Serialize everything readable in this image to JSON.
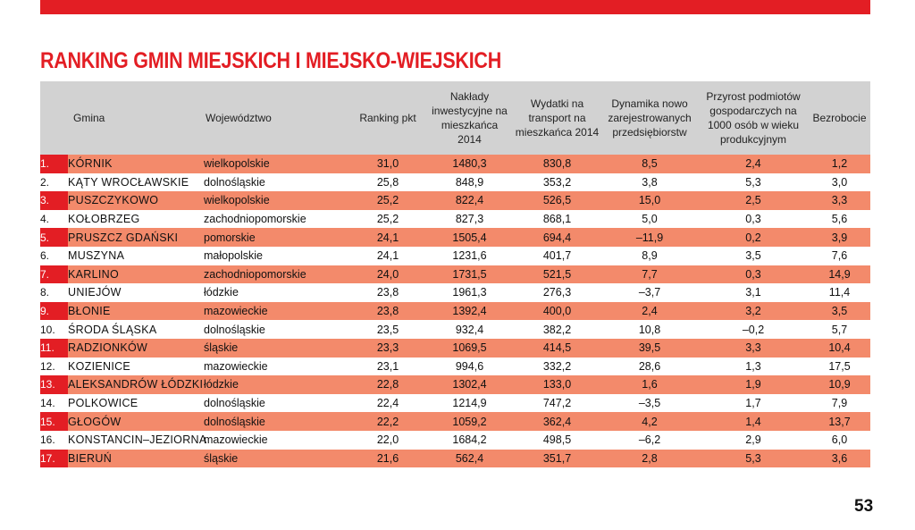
{
  "title": "RANKING GMIN MIEJSKICH I MIEJSKO-WIEJSKICH",
  "page_number": "53",
  "colors": {
    "accent_red": "#e31e24",
    "salmon_row": "#f38a6b",
    "header_gray": "#d2d2d2"
  },
  "headers": {
    "gmina": "Gmina",
    "wojewodztwo": "Województwo",
    "ranking": "Ranking pkt",
    "naklady": "Nakłady inwestycyjne na mieszkańca 2014",
    "wydatki": "Wydatki na transport na mieszkańca 2014",
    "dynamika": "Dynamika nowo zarejestrowanych przedsiębiorstw",
    "przyrost": "Przyrost podmiotów gospodarczych na 1000 osób w wieku produkcyjnym",
    "bezrobocie": "Bezrobocie"
  },
  "rows": [
    {
      "nr": "1.",
      "gmina": "KÓRNIK",
      "woj": "wielkopolskie",
      "pkt": "31,0",
      "naklady": "1480,3",
      "wydatki": "830,8",
      "dynamika": "8,5",
      "przyrost": "2,4",
      "bezrobocie": "1,2"
    },
    {
      "nr": "2.",
      "gmina": "KĄTY WROCŁAWSKIE",
      "woj": "dolnośląskie",
      "pkt": "25,8",
      "naklady": "848,9",
      "wydatki": "353,2",
      "dynamika": "3,8",
      "przyrost": "5,3",
      "bezrobocie": "3,0"
    },
    {
      "nr": "3.",
      "gmina": "PUSZCZYKOWO",
      "woj": "wielkopolskie",
      "pkt": "25,2",
      "naklady": "822,4",
      "wydatki": "526,5",
      "dynamika": "15,0",
      "przyrost": "2,5",
      "bezrobocie": "3,3"
    },
    {
      "nr": "4.",
      "gmina": "KOŁOBRZEG",
      "woj": "zachodniopomorskie",
      "pkt": "25,2",
      "naklady": "827,3",
      "wydatki": "868,1",
      "dynamika": "5,0",
      "przyrost": "0,3",
      "bezrobocie": "5,6"
    },
    {
      "nr": "5.",
      "gmina": "PRUSZCZ GDAŃSKI",
      "woj": "pomorskie",
      "pkt": "24,1",
      "naklady": "1505,4",
      "wydatki": "694,4",
      "dynamika": "–11,9",
      "przyrost": "0,2",
      "bezrobocie": "3,9"
    },
    {
      "nr": "6.",
      "gmina": "MUSZYNA",
      "woj": "małopolskie",
      "pkt": "24,1",
      "naklady": "1231,6",
      "wydatki": "401,7",
      "dynamika": "8,9",
      "przyrost": "3,5",
      "bezrobocie": "7,6"
    },
    {
      "nr": "7.",
      "gmina": "KARLINO",
      "woj": "zachodniopomorskie",
      "pkt": "24,0",
      "naklady": "1731,5",
      "wydatki": "521,5",
      "dynamika": "7,7",
      "przyrost": "0,3",
      "bezrobocie": "14,9"
    },
    {
      "nr": "8.",
      "gmina": "UNIEJÓW",
      "woj": "łódzkie",
      "pkt": "23,8",
      "naklady": "1961,3",
      "wydatki": "276,3",
      "dynamika": "–3,7",
      "przyrost": "3,1",
      "bezrobocie": "11,4"
    },
    {
      "nr": "9.",
      "gmina": "BŁONIE",
      "woj": "mazowieckie",
      "pkt": "23,8",
      "naklady": "1392,4",
      "wydatki": "400,0",
      "dynamika": "2,4",
      "przyrost": "3,2",
      "bezrobocie": "3,5"
    },
    {
      "nr": "10.",
      "gmina": "ŚRODA ŚLĄSKA",
      "woj": "dolnośląskie",
      "pkt": "23,5",
      "naklady": "932,4",
      "wydatki": "382,2",
      "dynamika": "10,8",
      "przyrost": "–0,2",
      "bezrobocie": "5,7"
    },
    {
      "nr": "11.",
      "gmina": "RADZIONKÓW",
      "woj": "śląskie",
      "pkt": "23,3",
      "naklady": "1069,5",
      "wydatki": "414,5",
      "dynamika": "39,5",
      "przyrost": "3,3",
      "bezrobocie": "10,4"
    },
    {
      "nr": "12.",
      "gmina": "KOZIENICE",
      "woj": "mazowieckie",
      "pkt": "23,1",
      "naklady": "994,6",
      "wydatki": "332,2",
      "dynamika": "28,6",
      "przyrost": "1,3",
      "bezrobocie": "17,5"
    },
    {
      "nr": "13.",
      "gmina": "ALEKSANDRÓW ŁÓDZKI",
      "woj": "łódzkie",
      "pkt": "22,8",
      "naklady": "1302,4",
      "wydatki": "133,0",
      "dynamika": "1,6",
      "przyrost": "1,9",
      "bezrobocie": "10,9"
    },
    {
      "nr": "14.",
      "gmina": "POLKOWICE",
      "woj": "dolnośląskie",
      "pkt": "22,4",
      "naklady": "1214,9",
      "wydatki": "747,2",
      "dynamika": "–3,5",
      "przyrost": "1,7",
      "bezrobocie": "7,9"
    },
    {
      "nr": "15.",
      "gmina": "GŁOGÓW",
      "woj": "dolnośląskie",
      "pkt": "22,2",
      "naklady": "1059,2",
      "wydatki": "362,4",
      "dynamika": "4,2",
      "przyrost": "1,4",
      "bezrobocie": "13,7"
    },
    {
      "nr": "16.",
      "gmina": "KONSTANCIN–JEZIORNA",
      "woj": "mazowieckie",
      "pkt": "22,0",
      "naklady": "1684,2",
      "wydatki": "498,5",
      "dynamika": "–6,2",
      "przyrost": "2,9",
      "bezrobocie": "6,0"
    },
    {
      "nr": "17.",
      "gmina": "BIERUŃ",
      "woj": "śląskie",
      "pkt": "21,6",
      "naklady": "562,4",
      "wydatki": "351,7",
      "dynamika": "2,8",
      "przyrost": "5,3",
      "bezrobocie": "3,6"
    }
  ]
}
